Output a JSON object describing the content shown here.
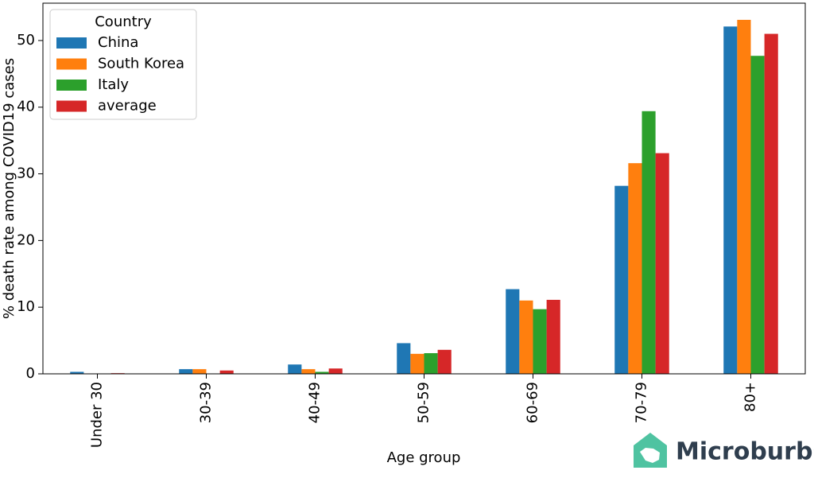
{
  "chart_data": {
    "type": "bar",
    "x_label": "Age group",
    "y_label": "% death rate among COVID19 cases",
    "categories": [
      "Under 30",
      "30-39",
      "40-49",
      "50-59",
      "60-69",
      "70-79",
      "80+"
    ],
    "series": [
      {
        "name": "China",
        "color": "#1f77b4",
        "values": [
          0.3,
          0.7,
          1.4,
          4.6,
          12.7,
          28.2,
          52.1
        ]
      },
      {
        "name": "South Korea",
        "color": "#ff7f0e",
        "values": [
          0,
          0.7,
          0.7,
          3.0,
          11.0,
          31.6,
          53.1
        ]
      },
      {
        "name": "Italy",
        "color": "#2ca02c",
        "values": [
          0,
          0,
          0.3,
          3.1,
          9.7,
          39.4,
          47.7
        ]
      },
      {
        "name": "average",
        "color": "#d62728",
        "values": [
          0.1,
          0.5,
          0.8,
          3.6,
          11.1,
          33.1,
          51.0
        ]
      }
    ],
    "legend_title": "Country",
    "legend": "upper left",
    "ylim": [
      0,
      55.6
    ],
    "yticks": [
      0,
      10,
      20,
      30,
      40,
      50
    ],
    "watermark": "Microburbs"
  }
}
